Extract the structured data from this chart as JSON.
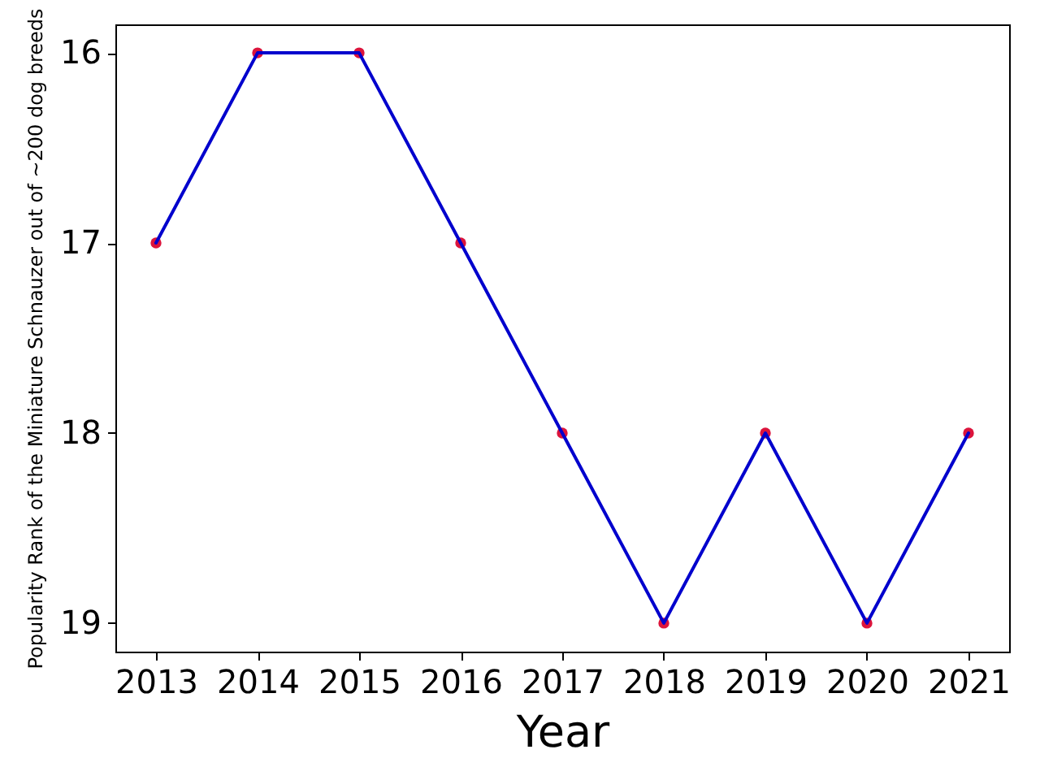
{
  "chart_data": {
    "type": "line",
    "xlabel": "Year",
    "ylabel": "Popularity Rank of the Miniature Schnauzer out of ~200 dog breeds",
    "x": [
      2013,
      2014,
      2015,
      2016,
      2017,
      2018,
      2019,
      2020,
      2021
    ],
    "series": [
      {
        "type": "scatter",
        "marker": "circle",
        "color": "#dc143c",
        "values": [
          17,
          16,
          16,
          17,
          18,
          19,
          18,
          19,
          18
        ]
      },
      {
        "color": "#0000cd",
        "line_style": "solid",
        "values": [
          17,
          16,
          16,
          17,
          18,
          19,
          18,
          19,
          18
        ]
      }
    ],
    "xlim": [
      2012.6,
      2021.4
    ],
    "ylim": [
      19.15,
      15.85
    ],
    "xticks": [
      2013,
      2014,
      2015,
      2016,
      2017,
      2018,
      2019,
      2020,
      2021
    ],
    "yticks": [
      16,
      17,
      18,
      19
    ],
    "grid": false
  }
}
